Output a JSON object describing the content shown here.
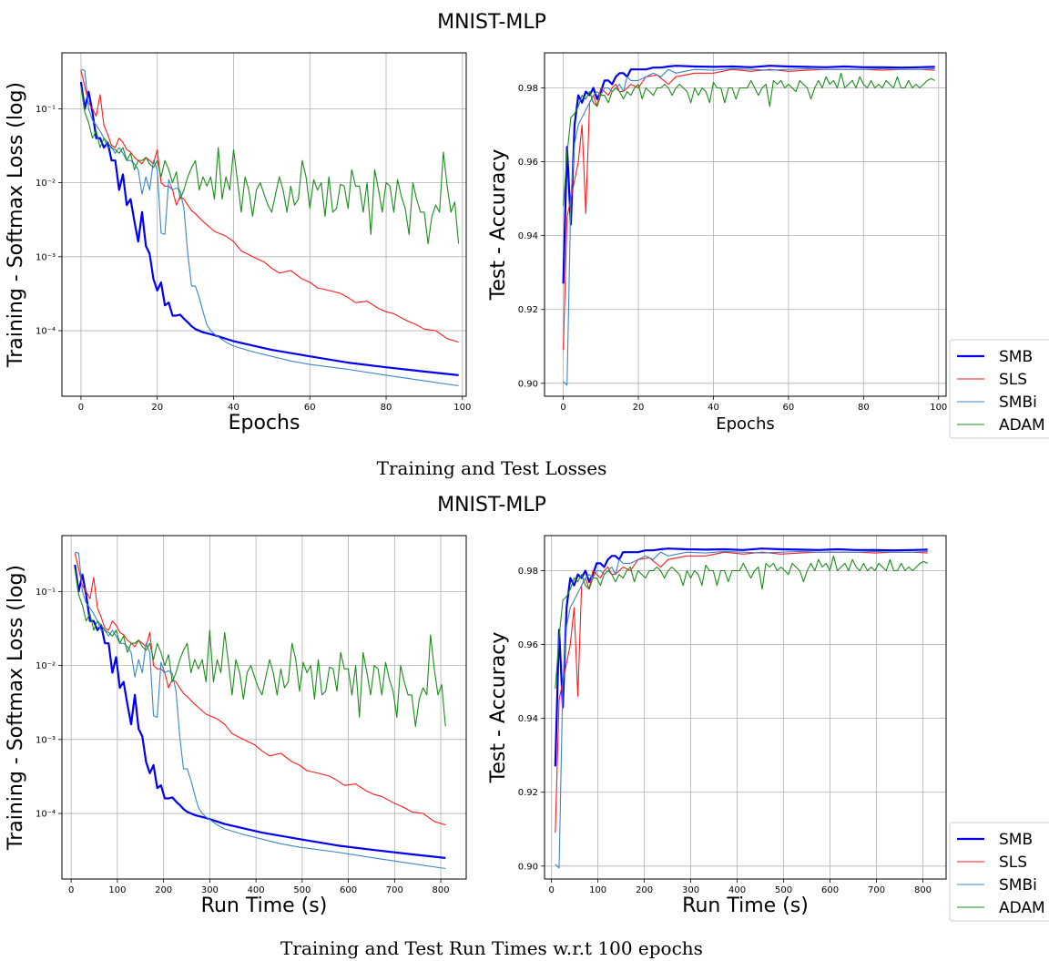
{
  "figure_titles": [
    "MNIST-MLP",
    "MNIST-MLP"
  ],
  "captions": [
    "Training and Test Losses",
    "Training and Test Run Times w.r.t 100 epochs"
  ],
  "colors": {
    "SMB": "#0000ee",
    "SLS": "#ff1a1a",
    "SMBi": "#3a86c8",
    "ADAM": "#1a8c1a",
    "grid": "#b0b0b0"
  },
  "chart_data": [
    {
      "type": "line",
      "xlabel": "Epochs",
      "ylabel": "Training - Softmax Loss (log)",
      "yscale": "log",
      "xlim": [
        -5,
        101
      ],
      "ylim": [
        1.3e-05,
        0.57
      ],
      "xticks": [
        0,
        20,
        40,
        60,
        80,
        100
      ],
      "yticks": [
        0.0001,
        0.001,
        0.01,
        0.1
      ],
      "ytick_labels": [
        "10⁻⁴",
        "10⁻³",
        "10⁻²",
        "10⁻¹"
      ],
      "grid": true,
      "legend": "none",
      "series": [
        {
          "name": "SMB",
          "x": [
            0,
            1,
            2,
            3,
            4,
            5,
            6,
            7,
            8,
            9,
            10,
            11,
            12,
            13,
            14,
            15,
            16,
            17,
            18,
            19,
            20,
            21,
            22,
            23,
            24,
            25,
            26,
            27,
            28,
            29,
            30,
            32,
            35,
            40,
            50,
            60,
            70,
            80,
            90,
            99
          ],
          "y": [
            0.23,
            0.1,
            0.17,
            0.09,
            0.04,
            0.04,
            0.03,
            0.035,
            0.02,
            0.02,
            0.008,
            0.013,
            0.005,
            0.006,
            0.003,
            0.0016,
            0.004,
            0.0014,
            0.0011,
            0.0005,
            0.00035,
            0.00045,
            0.00022,
            0.00024,
            0.00016,
            0.00016,
            0.000165,
            0.000145,
            0.00013,
            0.000115,
            0.000105,
            9.5e-05,
            8.7e-05,
            7.2e-05,
            5.5e-05,
            4.5e-05,
            3.7e-05,
            3.2e-05,
            2.8e-05,
            2.5e-05
          ]
        },
        {
          "name": "SLS",
          "x": [
            0,
            1,
            2,
            3,
            4,
            5,
            6,
            7,
            8,
            9,
            10,
            11,
            12,
            13,
            14,
            15,
            16,
            17,
            18,
            19,
            20,
            21,
            22,
            23,
            24,
            25,
            26,
            27,
            28,
            29,
            30,
            32,
            35,
            38,
            40,
            42,
            45,
            48,
            50,
            52,
            55,
            58,
            60,
            62,
            65,
            68,
            70,
            72,
            75,
            78,
            80,
            82,
            85,
            88,
            90,
            93,
            96,
            99
          ],
          "y": [
            0.33,
            0.2,
            0.12,
            0.1,
            0.08,
            0.155,
            0.06,
            0.045,
            0.032,
            0.03,
            0.04,
            0.035,
            0.028,
            0.026,
            0.022,
            0.02,
            0.018,
            0.022,
            0.02,
            0.018,
            0.028,
            0.01,
            0.009,
            0.009,
            0.008,
            0.005,
            0.0065,
            0.006,
            0.005,
            0.0042,
            0.0038,
            0.003,
            0.0022,
            0.0019,
            0.0016,
            0.0012,
            0.001,
            0.00085,
            0.0007,
            0.0006,
            0.00065,
            0.0005,
            0.00045,
            0.00038,
            0.00035,
            0.00032,
            0.00028,
            0.00024,
            0.00025,
            0.0002,
            0.00018,
            0.00017,
            0.00014,
            0.00012,
            0.000105,
            0.0001,
            7.8e-05,
            7e-05
          ]
        },
        {
          "name": "SMBi",
          "x": [
            0,
            1,
            2,
            3,
            4,
            5,
            6,
            7,
            8,
            9,
            10,
            11,
            12,
            13,
            14,
            15,
            16,
            17,
            18,
            19,
            20,
            21,
            22,
            23,
            24,
            25,
            26,
            27,
            28,
            29,
            30,
            31,
            32,
            33,
            34,
            35,
            38,
            40,
            45,
            50,
            55,
            60,
            70,
            80,
            90,
            99
          ],
          "y": [
            0.34,
            0.33,
            0.1,
            0.07,
            0.06,
            0.05,
            0.04,
            0.03,
            0.03,
            0.025,
            0.03,
            0.025,
            0.02,
            0.02,
            0.018,
            0.015,
            0.007,
            0.012,
            0.008,
            0.02,
            0.015,
            0.0021,
            0.002,
            0.011,
            0.008,
            0.0085,
            0.0078,
            0.0045,
            0.0011,
            0.0004,
            0.0004,
            0.00028,
            0.00018,
            0.00012,
            0.0001,
            9e-05,
            7e-05,
            6.2e-05,
            5.2e-05,
            4.5e-05,
            3.9e-05,
            3.5e-05,
            3e-05,
            2.5e-05,
            2.1e-05,
            1.8e-05
          ]
        },
        {
          "name": "ADAM",
          "x": [
            0,
            1,
            2,
            3,
            4,
            5,
            6,
            7,
            8,
            9,
            10,
            11,
            12,
            13,
            14,
            15,
            16,
            17,
            18,
            19,
            20,
            21,
            22,
            23,
            24,
            25,
            26,
            27,
            28,
            29,
            30,
            31,
            32,
            33,
            34,
            35,
            36,
            37,
            38,
            39,
            40,
            41,
            42,
            43,
            44,
            45,
            46,
            47,
            48,
            49,
            50,
            51,
            52,
            53,
            54,
            55,
            56,
            57,
            58,
            59,
            60,
            61,
            62,
            63,
            64,
            65,
            66,
            67,
            68,
            69,
            70,
            71,
            72,
            73,
            74,
            75,
            76,
            77,
            78,
            79,
            80,
            81,
            82,
            83,
            84,
            85,
            86,
            87,
            88,
            89,
            90,
            91,
            92,
            93,
            94,
            95,
            96,
            97,
            98,
            99
          ],
          "y": [
            0.2,
            0.09,
            0.065,
            0.04,
            0.05,
            0.03,
            0.04,
            0.035,
            0.03,
            0.028,
            0.025,
            0.03,
            0.02,
            0.025,
            0.015,
            0.02,
            0.02,
            0.022,
            0.018,
            0.016,
            0.02,
            0.012,
            0.02,
            0.015,
            0.01,
            0.014,
            0.006,
            0.008,
            0.012,
            0.016,
            0.02,
            0.008,
            0.012,
            0.009,
            0.012,
            0.006,
            0.03,
            0.006,
            0.012,
            0.008,
            0.028,
            0.011,
            0.004,
            0.012,
            0.008,
            0.0035,
            0.008,
            0.01,
            0.007,
            0.005,
            0.004,
            0.007,
            0.012,
            0.008,
            0.004,
            0.009,
            0.005,
            0.006,
            0.02,
            0.012,
            0.0045,
            0.011,
            0.008,
            0.01,
            0.0035,
            0.012,
            0.004,
            0.0045,
            0.0095,
            0.009,
            0.0045,
            0.015,
            0.009,
            0.009,
            0.004,
            0.01,
            0.002,
            0.015,
            0.008,
            0.004,
            0.01,
            0.009,
            0.004,
            0.011,
            0.0065,
            0.0045,
            0.002,
            0.01,
            0.006,
            0.004,
            0.004,
            0.0015,
            0.0035,
            0.005,
            0.004,
            0.026,
            0.009,
            0.004,
            0.0055,
            0.0015
          ]
        }
      ]
    },
    {
      "type": "line",
      "xlabel": "Epochs",
      "ylabel": "Test - Accuracy",
      "xlim": [
        -5,
        102
      ],
      "ylim": [
        0.8965,
        0.9895
      ],
      "xticks": [
        0,
        20,
        40,
        60,
        80,
        100
      ],
      "yticks": [
        0.9,
        0.92,
        0.94,
        0.96,
        0.98
      ],
      "ytick_labels": [
        "0.90",
        "0.92",
        "0.94",
        "0.96",
        "0.98"
      ],
      "grid": true,
      "legend": "right",
      "series": [
        {
          "name": "SMB",
          "x": [
            0,
            1,
            2,
            3,
            4,
            5,
            6,
            7,
            8,
            9,
            10,
            11,
            12,
            13,
            14,
            15,
            16,
            17,
            18,
            20,
            22,
            24,
            26,
            28,
            30,
            35,
            40,
            45,
            50,
            55,
            60,
            65,
            70,
            75,
            80,
            85,
            90,
            95,
            99
          ],
          "y": [
            0.927,
            0.964,
            0.943,
            0.97,
            0.978,
            0.976,
            0.979,
            0.978,
            0.98,
            0.977,
            0.979,
            0.982,
            0.982,
            0.981,
            0.983,
            0.984,
            0.984,
            0.983,
            0.985,
            0.985,
            0.985,
            0.9855,
            0.9855,
            0.9858,
            0.986,
            0.9858,
            0.9857,
            0.9858,
            0.9856,
            0.986,
            0.9858,
            0.9857,
            0.9856,
            0.9858,
            0.9856,
            0.9856,
            0.9855,
            0.9856,
            0.9857
          ]
        },
        {
          "name": "SLS",
          "x": [
            0,
            1,
            2,
            3,
            4,
            5,
            6,
            7,
            8,
            9,
            10,
            11,
            12,
            13,
            14,
            15,
            16,
            18,
            20,
            22,
            25,
            28,
            30,
            35,
            40,
            45,
            50,
            55,
            60,
            65,
            70,
            75,
            80,
            85,
            90,
            95,
            99
          ],
          "y": [
            0.909,
            0.945,
            0.95,
            0.955,
            0.96,
            0.97,
            0.946,
            0.976,
            0.978,
            0.975,
            0.98,
            0.979,
            0.978,
            0.98,
            0.981,
            0.979,
            0.979,
            0.981,
            0.98,
            0.983,
            0.9835,
            0.981,
            0.983,
            0.984,
            0.984,
            0.985,
            0.9845,
            0.985,
            0.9845,
            0.9848,
            0.985,
            0.985,
            0.985,
            0.9848,
            0.985,
            0.985,
            0.9848
          ]
        },
        {
          "name": "SMBi",
          "x": [
            0,
            1,
            2,
            3,
            4,
            5,
            6,
            7,
            8,
            9,
            10,
            11,
            12,
            13,
            14,
            15,
            16,
            17,
            18,
            20,
            22,
            24,
            26,
            28,
            30,
            35,
            40,
            45,
            50,
            55,
            60,
            65,
            70,
            75,
            80,
            85,
            90,
            95,
            99
          ],
          "y": [
            0.9005,
            0.8995,
            0.95,
            0.965,
            0.97,
            0.972,
            0.974,
            0.976,
            0.978,
            0.979,
            0.978,
            0.98,
            0.98,
            0.979,
            0.98,
            0.981,
            0.979,
            0.983,
            0.982,
            0.982,
            0.983,
            0.984,
            0.983,
            0.985,
            0.984,
            0.985,
            0.9848,
            0.9852,
            0.985,
            0.9848,
            0.985,
            0.9852,
            0.985,
            0.985,
            0.985,
            0.9852,
            0.985,
            0.985,
            0.9852
          ]
        },
        {
          "name": "ADAM",
          "x": [
            0,
            1,
            2,
            3,
            4,
            5,
            6,
            7,
            8,
            9,
            10,
            11,
            12,
            13,
            14,
            15,
            16,
            17,
            18,
            19,
            20,
            21,
            22,
            23,
            24,
            25,
            26,
            27,
            28,
            29,
            30,
            31,
            32,
            33,
            34,
            35,
            36,
            37,
            38,
            39,
            40,
            41,
            42,
            43,
            44,
            45,
            46,
            47,
            48,
            49,
            50,
            51,
            52,
            53,
            54,
            55,
            56,
            57,
            58,
            59,
            60,
            61,
            62,
            63,
            64,
            65,
            66,
            67,
            68,
            69,
            70,
            71,
            72,
            73,
            74,
            75,
            76,
            77,
            78,
            79,
            80,
            81,
            82,
            83,
            84,
            85,
            86,
            87,
            88,
            89,
            90,
            91,
            92,
            93,
            94,
            95,
            96,
            97,
            98,
            99
          ],
          "y": [
            0.948,
            0.962,
            0.972,
            0.973,
            0.975,
            0.978,
            0.977,
            0.979,
            0.976,
            0.975,
            0.978,
            0.978,
            0.976,
            0.979,
            0.98,
            0.979,
            0.977,
            0.979,
            0.978,
            0.98,
            0.981,
            0.977,
            0.98,
            0.979,
            0.978,
            0.98,
            0.98,
            0.981,
            0.98,
            0.978,
            0.98,
            0.981,
            0.98,
            0.979,
            0.976,
            0.98,
            0.978,
            0.98,
            0.979,
            0.976,
            0.9815,
            0.98,
            0.98,
            0.976,
            0.98,
            0.98,
            0.977,
            0.98,
            0.98,
            0.98,
            0.982,
            0.98,
            0.978,
            0.98,
            0.981,
            0.975,
            0.982,
            0.981,
            0.982,
            0.98,
            0.981,
            0.98,
            0.979,
            0.982,
            0.981,
            0.98,
            0.977,
            0.98,
            0.982,
            0.98,
            0.983,
            0.981,
            0.982,
            0.98,
            0.984,
            0.98,
            0.981,
            0.982,
            0.98,
            0.983,
            0.981,
            0.98,
            0.982,
            0.98,
            0.981,
            0.98,
            0.982,
            0.981,
            0.98,
            0.983,
            0.98,
            0.98,
            0.982,
            0.98,
            0.981,
            0.98,
            0.981,
            0.982,
            0.9825,
            0.982
          ]
        }
      ]
    },
    {
      "type": "line",
      "xlabel": "Run Time (s)",
      "ylabel": "Training - Softmax Loss (log)",
      "yscale": "log",
      "xlim": [
        -20,
        855
      ],
      "ylim": [
        1.3e-05,
        0.57
      ],
      "xticks": [
        0,
        100,
        200,
        300,
        400,
        500,
        600,
        700,
        800
      ],
      "yticks": [
        0.0001,
        0.001,
        0.01,
        0.1
      ],
      "ytick_labels": [
        "10⁻⁴",
        "10⁻³",
        "10⁻²",
        "10⁻¹"
      ],
      "grid": true,
      "legend": "none",
      "x_per_epoch": [
        8.2,
        8.1
      ],
      "series_ref": 0
    },
    {
      "type": "line",
      "xlabel": "Run Time (s)",
      "ylabel": "Test - Accuracy",
      "xlim": [
        -15,
        850
      ],
      "ylim": [
        0.8965,
        0.9895
      ],
      "xticks": [
        0,
        100,
        200,
        300,
        400,
        500,
        600,
        700,
        800
      ],
      "yticks": [
        0.9,
        0.92,
        0.94,
        0.96,
        0.98
      ],
      "ytick_labels": [
        "0.90",
        "0.92",
        "0.94",
        "0.96",
        "0.98"
      ],
      "grid": true,
      "legend": "right",
      "x_per_epoch": [
        8.2,
        8.1
      ],
      "series_ref": 1
    }
  ]
}
